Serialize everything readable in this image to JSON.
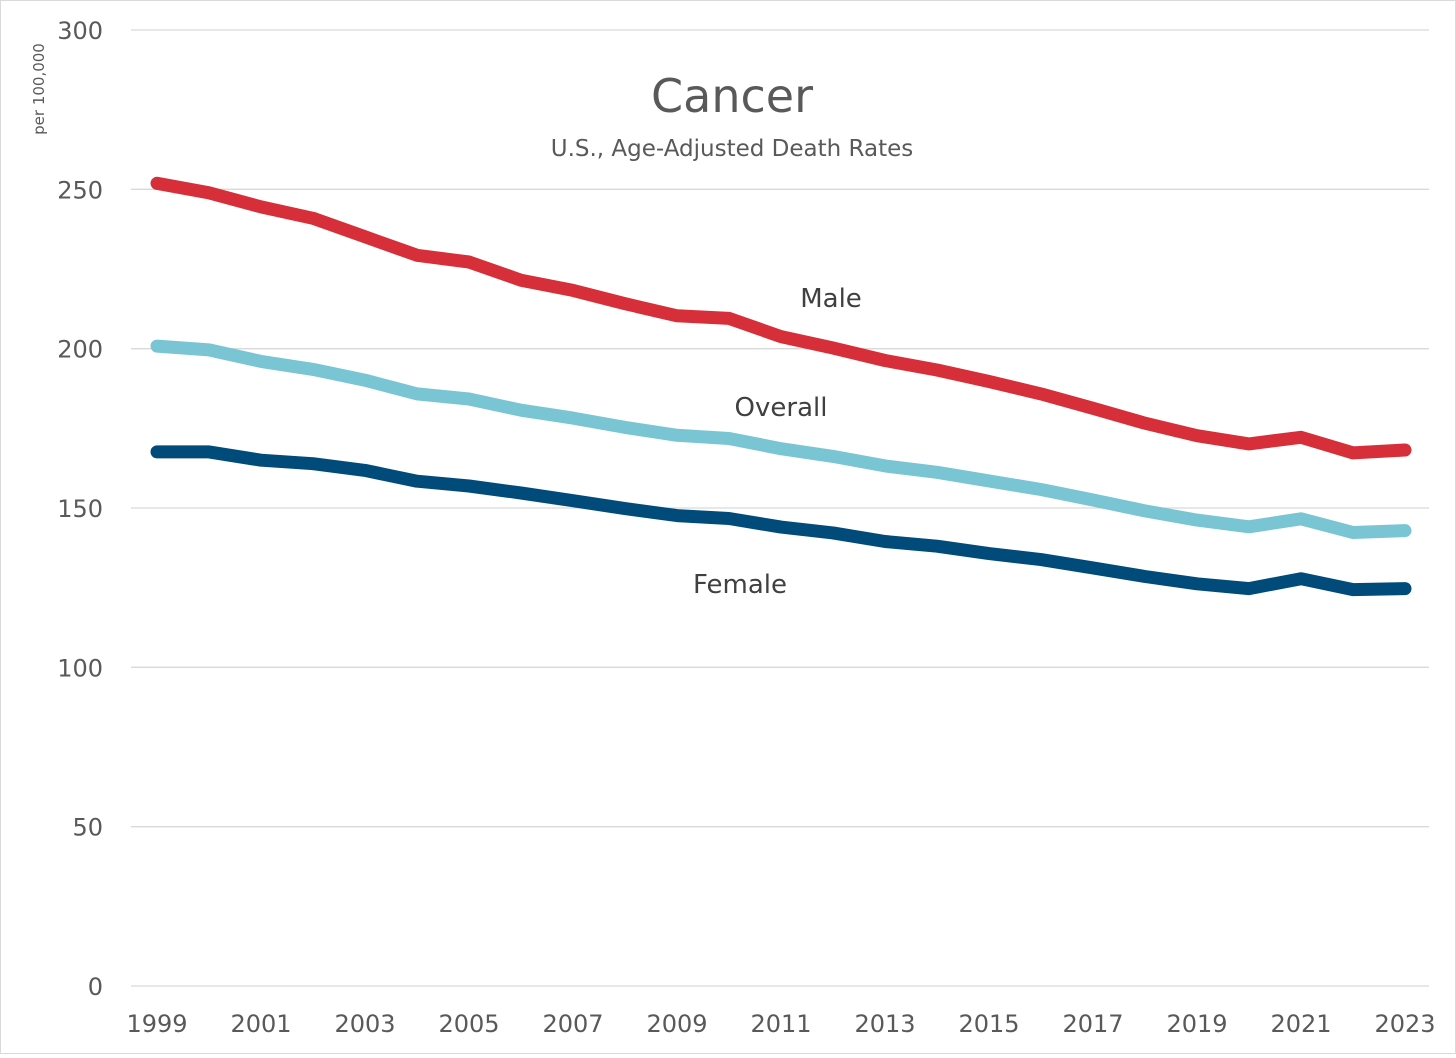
{
  "chart_data": {
    "type": "line",
    "title": "Cancer",
    "subtitle": "U.S., Age-Adjusted Death Rates",
    "ylabel": "per 100,000",
    "xlabel": "",
    "ylim": [
      0,
      300
    ],
    "yticks": [
      0,
      50,
      100,
      150,
      200,
      250,
      300
    ],
    "xticks": [
      1999,
      2001,
      2003,
      2005,
      2007,
      2009,
      2011,
      2013,
      2015,
      2017,
      2019,
      2021,
      2023
    ],
    "grid": true,
    "legend": "none (direct labels on lines)",
    "x": [
      1999,
      2000,
      2001,
      2002,
      2003,
      2004,
      2005,
      2006,
      2007,
      2008,
      2009,
      2010,
      2011,
      2012,
      2013,
      2014,
      2015,
      2016,
      2017,
      2018,
      2019,
      2020,
      2021,
      2022,
      2023
    ],
    "series": [
      {
        "name": "Male",
        "color": "#d62f39",
        "values": [
          251.9,
          248.9,
          244.5,
          240.9,
          235.1,
          229.3,
          227.2,
          221.5,
          218.3,
          214.1,
          210.3,
          209.5,
          203.8,
          200.2,
          196.3,
          193.3,
          189.7,
          185.8,
          181.3,
          176.6,
          172.7,
          170.1,
          172.2,
          167.3,
          168.2
        ]
      },
      {
        "name": "Overall",
        "color": "#79c5d4",
        "values": [
          200.8,
          199.6,
          196.0,
          193.5,
          190.1,
          185.8,
          184.2,
          180.7,
          178.2,
          175.3,
          172.8,
          171.8,
          168.6,
          166.2,
          163.2,
          161.2,
          158.5,
          155.8,
          152.5,
          149.1,
          146.2,
          144.1,
          146.6,
          142.3,
          142.9
        ]
      },
      {
        "name": "Female",
        "color": "#004b7a",
        "values": [
          167.6,
          167.6,
          165.0,
          163.9,
          161.8,
          158.4,
          156.9,
          154.7,
          152.3,
          149.8,
          147.6,
          146.7,
          144.0,
          142.2,
          139.5,
          138.0,
          135.7,
          133.8,
          131.2,
          128.5,
          126.2,
          124.7,
          127.8,
          124.4,
          124.7
        ]
      }
    ]
  }
}
